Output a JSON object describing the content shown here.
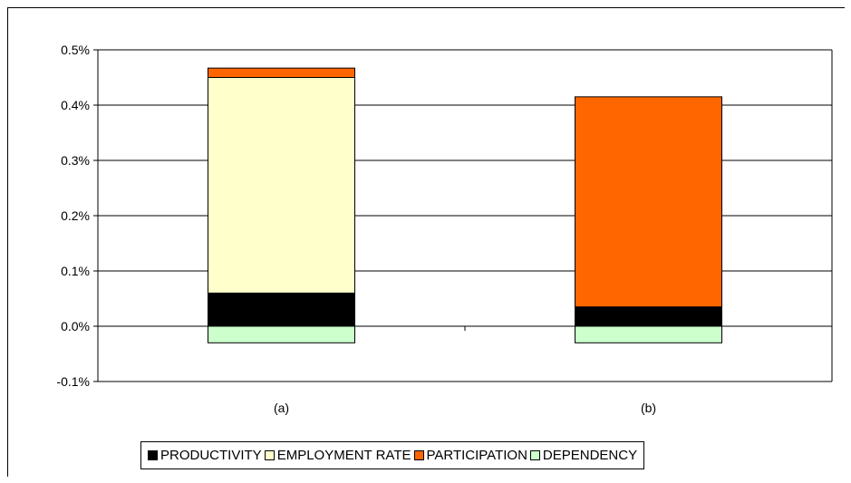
{
  "chart_data": {
    "type": "bar",
    "stacked": true,
    "categories": [
      "(a)",
      "(b)"
    ],
    "series": [
      {
        "name": "PRODUCTIVITY",
        "values": [
          0.0006,
          0.00035
        ],
        "color": "#000000"
      },
      {
        "name": "EMPLOYMENT RATE",
        "values": [
          0.0039,
          0.0
        ],
        "color": "#ffffcc"
      },
      {
        "name": "PARTICIPATION",
        "values": [
          0.00017,
          0.0038
        ],
        "color": "#ff6600"
      },
      {
        "name": "DEPENDENCY",
        "values": [
          -0.0003,
          -0.0003
        ],
        "color": "#ccffcc"
      }
    ],
    "ylim": [
      -0.001,
      0.005
    ],
    "yticks": [
      -0.001,
      0.0,
      0.001,
      0.002,
      0.003,
      0.004,
      0.005
    ],
    "ytick_labels": [
      "-0.1%",
      "0.0%",
      "0.1%",
      "0.2%",
      "0.3%",
      "0.4%",
      "0.5%"
    ],
    "grid": true,
    "legend_position": "bottom"
  }
}
